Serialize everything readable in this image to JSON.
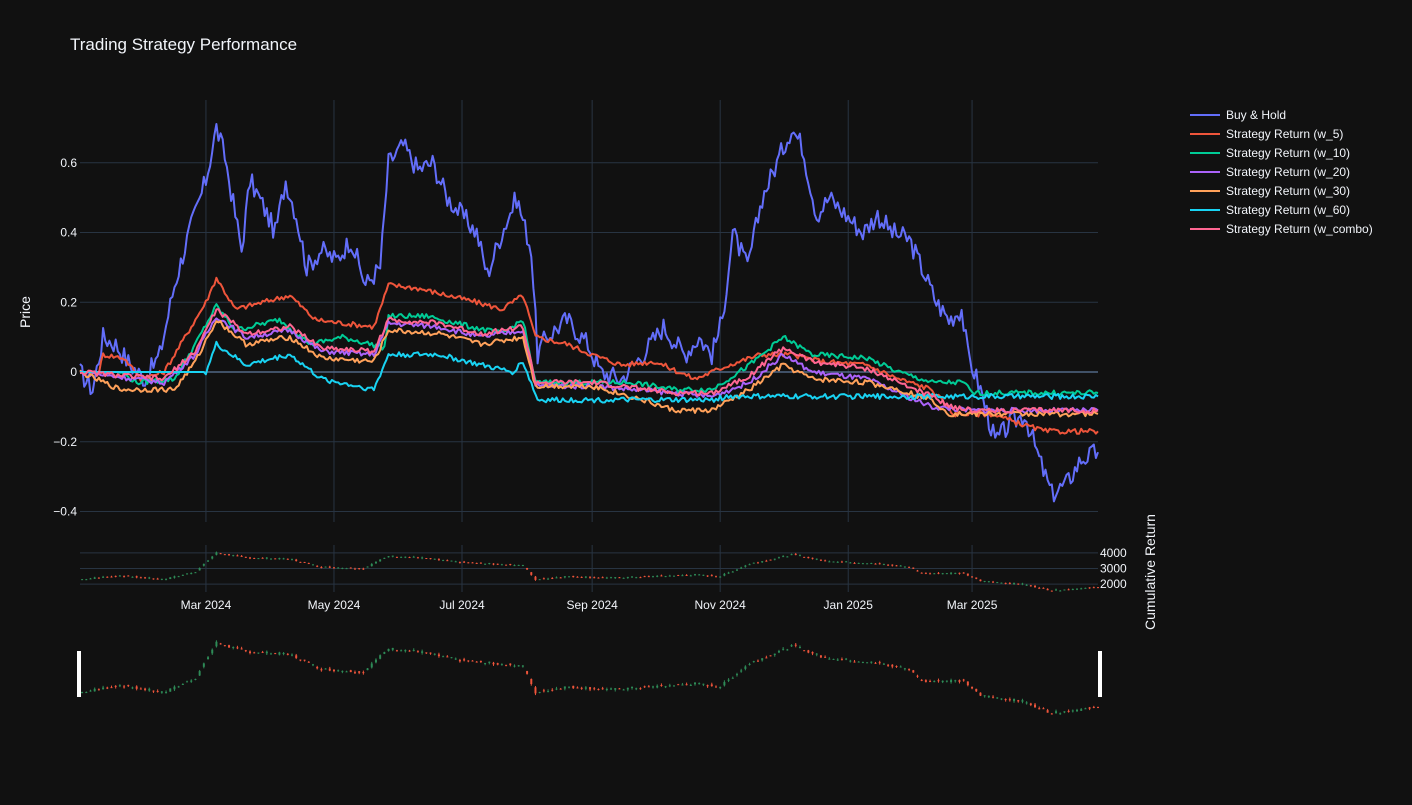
{
  "chart_data": {
    "type": "line",
    "title": "Trading Strategy Performance",
    "ylabel": "Price",
    "y2label": "Cumulative Return",
    "x_ticks": [
      "Mar 2024",
      "May 2024",
      "Jul 2024",
      "Sep 2024",
      "Nov 2024",
      "Jan 2025",
      "Mar 2025"
    ],
    "x_range": [
      "2024-01-01",
      "2025-04-30"
    ],
    "ylim": [
      -0.43,
      0.78
    ],
    "y_ticks": [
      -0.4,
      -0.2,
      0,
      0.2,
      0.4,
      0.6
    ],
    "y_tick_labels": [
      "−0.4",
      "−0.2",
      "0",
      "0.2",
      "0.4",
      "0.6"
    ],
    "candle_ylim": [
      1500,
      4500
    ],
    "candle_ticks": [
      2000,
      3000,
      4000
    ],
    "candle_tick_labels": [
      "2000",
      "3000",
      "4000"
    ],
    "grid": true,
    "legend_position": "right",
    "colors": {
      "background": "#111111",
      "grid": "#283442",
      "zeroline": "#506784",
      "increasing": "#2e8b57",
      "decreasing": "#ef553b",
      "slider_handle": "#ffffff"
    },
    "series": [
      {
        "name": "Buy & Hold",
        "color": "#636efa",
        "points": [
          [
            "2024-01-01",
            0
          ],
          [
            "2024-01-07",
            -0.05
          ],
          [
            "2024-01-12",
            0.1
          ],
          [
            "2024-01-18",
            0.08
          ],
          [
            "2024-01-25",
            0.02
          ],
          [
            "2024-02-01",
            -0.02
          ],
          [
            "2024-02-08",
            0.05
          ],
          [
            "2024-02-15",
            0.25
          ],
          [
            "2024-02-22",
            0.4
          ],
          [
            "2024-03-01",
            0.55
          ],
          [
            "2024-03-06",
            0.7
          ],
          [
            "2024-03-10",
            0.62
          ],
          [
            "2024-03-15",
            0.45
          ],
          [
            "2024-03-18",
            0.35
          ],
          [
            "2024-03-22",
            0.55
          ],
          [
            "2024-03-28",
            0.48
          ],
          [
            "2024-04-03",
            0.4
          ],
          [
            "2024-04-08",
            0.55
          ],
          [
            "2024-04-13",
            0.45
          ],
          [
            "2024-04-18",
            0.3
          ],
          [
            "2024-04-25",
            0.35
          ],
          [
            "2024-05-02",
            0.32
          ],
          [
            "2024-05-09",
            0.38
          ],
          [
            "2024-05-16",
            0.25
          ],
          [
            "2024-05-23",
            0.3
          ],
          [
            "2024-05-27",
            0.6
          ],
          [
            "2024-06-03",
            0.65
          ],
          [
            "2024-06-10",
            0.58
          ],
          [
            "2024-06-17",
            0.6
          ],
          [
            "2024-06-24",
            0.5
          ],
          [
            "2024-07-01",
            0.45
          ],
          [
            "2024-07-08",
            0.4
          ],
          [
            "2024-07-13",
            0.28
          ],
          [
            "2024-07-20",
            0.4
          ],
          [
            "2024-07-27",
            0.5
          ],
          [
            "2024-08-03",
            0.35
          ],
          [
            "2024-08-06",
            0.05
          ],
          [
            "2024-08-10",
            0.1
          ],
          [
            "2024-08-20",
            0.15
          ],
          [
            "2024-08-30",
            0.08
          ],
          [
            "2024-09-05",
            0.0
          ],
          [
            "2024-09-15",
            -0.02
          ],
          [
            "2024-09-25",
            0.05
          ],
          [
            "2024-10-05",
            0.13
          ],
          [
            "2024-10-15",
            0.05
          ],
          [
            "2024-10-22",
            0.1
          ],
          [
            "2024-10-28",
            0.05
          ],
          [
            "2024-11-02",
            0.15
          ],
          [
            "2024-11-07",
            0.4
          ],
          [
            "2024-11-14",
            0.3
          ],
          [
            "2024-11-21",
            0.5
          ],
          [
            "2024-11-28",
            0.6
          ],
          [
            "2024-12-05",
            0.7
          ],
          [
            "2024-12-10",
            0.65
          ],
          [
            "2024-12-17",
            0.45
          ],
          [
            "2024-12-23",
            0.5
          ],
          [
            "2024-12-31",
            0.45
          ],
          [
            "2025-01-08",
            0.4
          ],
          [
            "2025-01-15",
            0.45
          ],
          [
            "2025-01-22",
            0.4
          ],
          [
            "2025-01-30",
            0.38
          ],
          [
            "2025-02-05",
            0.3
          ],
          [
            "2025-02-12",
            0.2
          ],
          [
            "2025-02-18",
            0.15
          ],
          [
            "2025-02-24",
            0.18
          ],
          [
            "2025-02-27",
            0.05
          ],
          [
            "2025-03-05",
            -0.05
          ],
          [
            "2025-03-12",
            -0.2
          ],
          [
            "2025-03-19",
            -0.15
          ],
          [
            "2025-03-26",
            -0.12
          ],
          [
            "2025-04-02",
            -0.25
          ],
          [
            "2025-04-08",
            -0.35
          ],
          [
            "2025-04-15",
            -0.32
          ],
          [
            "2025-04-22",
            -0.25
          ],
          [
            "2025-04-30",
            -0.23
          ]
        ]
      },
      {
        "name": "Strategy Return (w_5)",
        "color": "#ef553b",
        "points": [
          [
            "2024-01-01",
            0
          ],
          [
            "2024-01-10",
            0.0
          ],
          [
            "2024-01-12",
            0.05
          ],
          [
            "2024-01-22",
            0.04
          ],
          [
            "2024-01-30",
            -0.02
          ],
          [
            "2024-02-10",
            0.0
          ],
          [
            "2024-02-20",
            0.1
          ],
          [
            "2024-03-01",
            0.2
          ],
          [
            "2024-03-06",
            0.27
          ],
          [
            "2024-03-15",
            0.18
          ],
          [
            "2024-03-28",
            0.2
          ],
          [
            "2024-04-10",
            0.22
          ],
          [
            "2024-04-22",
            0.15
          ],
          [
            "2024-05-05",
            0.14
          ],
          [
            "2024-05-20",
            0.13
          ],
          [
            "2024-05-27",
            0.25
          ],
          [
            "2024-06-10",
            0.24
          ],
          [
            "2024-06-24",
            0.22
          ],
          [
            "2024-07-08",
            0.2
          ],
          [
            "2024-07-20",
            0.18
          ],
          [
            "2024-07-30",
            0.22
          ],
          [
            "2024-08-05",
            0.1
          ],
          [
            "2024-08-20",
            0.08
          ],
          [
            "2024-09-01",
            0.05
          ],
          [
            "2024-09-15",
            0.02
          ],
          [
            "2024-10-01",
            0.03
          ],
          [
            "2024-10-20",
            -0.02
          ],
          [
            "2024-11-05",
            0.02
          ],
          [
            "2024-11-20",
            0.05
          ],
          [
            "2024-12-05",
            0.05
          ],
          [
            "2024-12-20",
            0.03
          ],
          [
            "2025-01-10",
            0.02
          ],
          [
            "2025-01-25",
            -0.02
          ],
          [
            "2025-02-10",
            -0.05
          ],
          [
            "2025-02-20",
            -0.12
          ],
          [
            "2025-03-10",
            -0.12
          ],
          [
            "2025-03-25",
            -0.15
          ],
          [
            "2025-04-05",
            -0.17
          ],
          [
            "2025-04-30",
            -0.17
          ]
        ]
      },
      {
        "name": "Strategy Return (w_10)",
        "color": "#00cc96",
        "points": [
          [
            "2024-01-01",
            0
          ],
          [
            "2024-01-20",
            0.0
          ],
          [
            "2024-01-28",
            -0.03
          ],
          [
            "2024-02-15",
            -0.02
          ],
          [
            "2024-02-25",
            0.08
          ],
          [
            "2024-03-06",
            0.19
          ],
          [
            "2024-03-15",
            0.12
          ],
          [
            "2024-04-05",
            0.15
          ],
          [
            "2024-04-20",
            0.08
          ],
          [
            "2024-05-05",
            0.1
          ],
          [
            "2024-05-25",
            0.07
          ],
          [
            "2024-05-27",
            0.16
          ],
          [
            "2024-06-15",
            0.16
          ],
          [
            "2024-07-05",
            0.13
          ],
          [
            "2024-07-20",
            0.11
          ],
          [
            "2024-07-30",
            0.15
          ],
          [
            "2024-08-05",
            -0.03
          ],
          [
            "2024-09-01",
            -0.03
          ],
          [
            "2024-09-20",
            -0.03
          ],
          [
            "2024-10-10",
            -0.05
          ],
          [
            "2024-10-28",
            -0.05
          ],
          [
            "2024-11-15",
            0.02
          ],
          [
            "2024-12-01",
            0.1
          ],
          [
            "2024-12-15",
            0.05
          ],
          [
            "2025-01-10",
            0.04
          ],
          [
            "2025-01-25",
            0.0
          ],
          [
            "2025-02-10",
            -0.03
          ],
          [
            "2025-02-25",
            -0.03
          ],
          [
            "2025-03-01",
            -0.06
          ],
          [
            "2025-04-30",
            -0.06
          ]
        ]
      },
      {
        "name": "Strategy Return (w_20)",
        "color": "#ab63fa",
        "points": [
          [
            "2024-01-01",
            0
          ],
          [
            "2024-02-10",
            -0.03
          ],
          [
            "2024-02-25",
            0.05
          ],
          [
            "2024-03-06",
            0.16
          ],
          [
            "2024-03-20",
            0.1
          ],
          [
            "2024-04-10",
            0.12
          ],
          [
            "2024-04-25",
            0.06
          ],
          [
            "2024-05-20",
            0.05
          ],
          [
            "2024-05-27",
            0.14
          ],
          [
            "2024-06-20",
            0.13
          ],
          [
            "2024-07-10",
            0.1
          ],
          [
            "2024-07-30",
            0.12
          ],
          [
            "2024-08-05",
            -0.04
          ],
          [
            "2024-09-01",
            -0.04
          ],
          [
            "2024-10-10",
            -0.06
          ],
          [
            "2024-10-28",
            -0.07
          ],
          [
            "2024-11-15",
            -0.03
          ],
          [
            "2024-12-01",
            0.05
          ],
          [
            "2024-12-15",
            0.0
          ],
          [
            "2025-01-10",
            -0.02
          ],
          [
            "2025-01-25",
            -0.06
          ],
          [
            "2025-02-10",
            -0.1
          ],
          [
            "2025-03-01",
            -0.11
          ],
          [
            "2025-04-30",
            -0.11
          ]
        ]
      },
      {
        "name": "Strategy Return (w_30)",
        "color": "#ffa15a",
        "points": [
          [
            "2024-01-01",
            0
          ],
          [
            "2024-01-20",
            -0.05
          ],
          [
            "2024-02-15",
            -0.05
          ],
          [
            "2024-02-25",
            0.03
          ],
          [
            "2024-03-06",
            0.15
          ],
          [
            "2024-03-20",
            0.08
          ],
          [
            "2024-04-10",
            0.1
          ],
          [
            "2024-04-25",
            0.04
          ],
          [
            "2024-05-20",
            0.03
          ],
          [
            "2024-05-27",
            0.12
          ],
          [
            "2024-06-20",
            0.11
          ],
          [
            "2024-07-10",
            0.08
          ],
          [
            "2024-07-30",
            0.1
          ],
          [
            "2024-08-05",
            -0.04
          ],
          [
            "2024-09-01",
            -0.04
          ],
          [
            "2024-09-25",
            -0.08
          ],
          [
            "2024-10-10",
            -0.11
          ],
          [
            "2024-10-28",
            -0.11
          ],
          [
            "2024-11-15",
            -0.05
          ],
          [
            "2024-12-01",
            0.02
          ],
          [
            "2024-12-15",
            -0.02
          ],
          [
            "2025-01-10",
            -0.03
          ],
          [
            "2025-01-25",
            -0.05
          ],
          [
            "2025-02-10",
            -0.08
          ],
          [
            "2025-02-18",
            -0.12
          ],
          [
            "2025-04-30",
            -0.12
          ]
        ]
      },
      {
        "name": "Strategy Return (w_60)",
        "color": "#19d3f3",
        "points": [
          [
            "2024-01-01",
            0
          ],
          [
            "2024-03-01",
            0.0
          ],
          [
            "2024-03-06",
            0.08
          ],
          [
            "2024-03-20",
            0.02
          ],
          [
            "2024-04-10",
            0.05
          ],
          [
            "2024-04-25",
            -0.02
          ],
          [
            "2024-05-20",
            -0.05
          ],
          [
            "2024-05-27",
            0.05
          ],
          [
            "2024-06-20",
            0.05
          ],
          [
            "2024-07-10",
            0.02
          ],
          [
            "2024-07-25",
            0.0
          ],
          [
            "2024-07-30",
            0.03
          ],
          [
            "2024-08-06",
            -0.08
          ],
          [
            "2024-09-01",
            -0.08
          ],
          [
            "2024-10-28",
            -0.08
          ],
          [
            "2024-11-05",
            -0.07
          ],
          [
            "2025-02-01",
            -0.07
          ],
          [
            "2025-04-30",
            -0.07
          ]
        ]
      },
      {
        "name": "Strategy Return (w_combo)",
        "color": "#ff6692",
        "points": [
          [
            "2024-01-01",
            0
          ],
          [
            "2024-02-10",
            -0.02
          ],
          [
            "2024-02-25",
            0.06
          ],
          [
            "2024-03-06",
            0.18
          ],
          [
            "2024-03-20",
            0.11
          ],
          [
            "2024-04-10",
            0.13
          ],
          [
            "2024-04-25",
            0.07
          ],
          [
            "2024-05-20",
            0.06
          ],
          [
            "2024-05-27",
            0.15
          ],
          [
            "2024-06-20",
            0.14
          ],
          [
            "2024-07-10",
            0.11
          ],
          [
            "2024-07-30",
            0.13
          ],
          [
            "2024-08-05",
            -0.03
          ],
          [
            "2024-09-01",
            -0.03
          ],
          [
            "2024-10-10",
            -0.06
          ],
          [
            "2024-10-28",
            -0.06
          ],
          [
            "2024-11-15",
            -0.01
          ],
          [
            "2024-12-01",
            0.07
          ],
          [
            "2024-12-15",
            0.03
          ],
          [
            "2025-01-10",
            0.01
          ],
          [
            "2025-01-25",
            -0.03
          ],
          [
            "2025-02-10",
            -0.07
          ],
          [
            "2025-02-20",
            -0.1
          ],
          [
            "2025-03-01",
            -0.11
          ],
          [
            "2025-04-30",
            -0.11
          ]
        ]
      }
    ],
    "candles": {
      "type": "candlestick",
      "price_points": [
        [
          "2024-01-01",
          2300
        ],
        [
          "2024-01-20",
          2550
        ],
        [
          "2024-02-10",
          2300
        ],
        [
          "2024-02-25",
          2800
        ],
        [
          "2024-03-06",
          4000
        ],
        [
          "2024-03-20",
          3700
        ],
        [
          "2024-04-10",
          3600
        ],
        [
          "2024-04-25",
          3100
        ],
        [
          "2024-05-15",
          3000
        ],
        [
          "2024-05-27",
          3800
        ],
        [
          "2024-06-10",
          3700
        ],
        [
          "2024-06-30",
          3400
        ],
        [
          "2024-07-15",
          3300
        ],
        [
          "2024-07-30",
          3200
        ],
        [
          "2024-08-05",
          2300
        ],
        [
          "2024-08-20",
          2500
        ],
        [
          "2024-09-10",
          2400
        ],
        [
          "2024-09-30",
          2500
        ],
        [
          "2024-10-20",
          2600
        ],
        [
          "2024-11-01",
          2500
        ],
        [
          "2024-11-15",
          3300
        ],
        [
          "2024-12-06",
          3900
        ],
        [
          "2024-12-20",
          3500
        ],
        [
          "2025-01-15",
          3300
        ],
        [
          "2025-01-30",
          3100
        ],
        [
          "2025-02-05",
          2700
        ],
        [
          "2025-02-25",
          2700
        ],
        [
          "2025-03-05",
          2200
        ],
        [
          "2025-03-25",
          2000
        ],
        [
          "2025-04-08",
          1600
        ],
        [
          "2025-04-30",
          1800
        ]
      ]
    }
  }
}
